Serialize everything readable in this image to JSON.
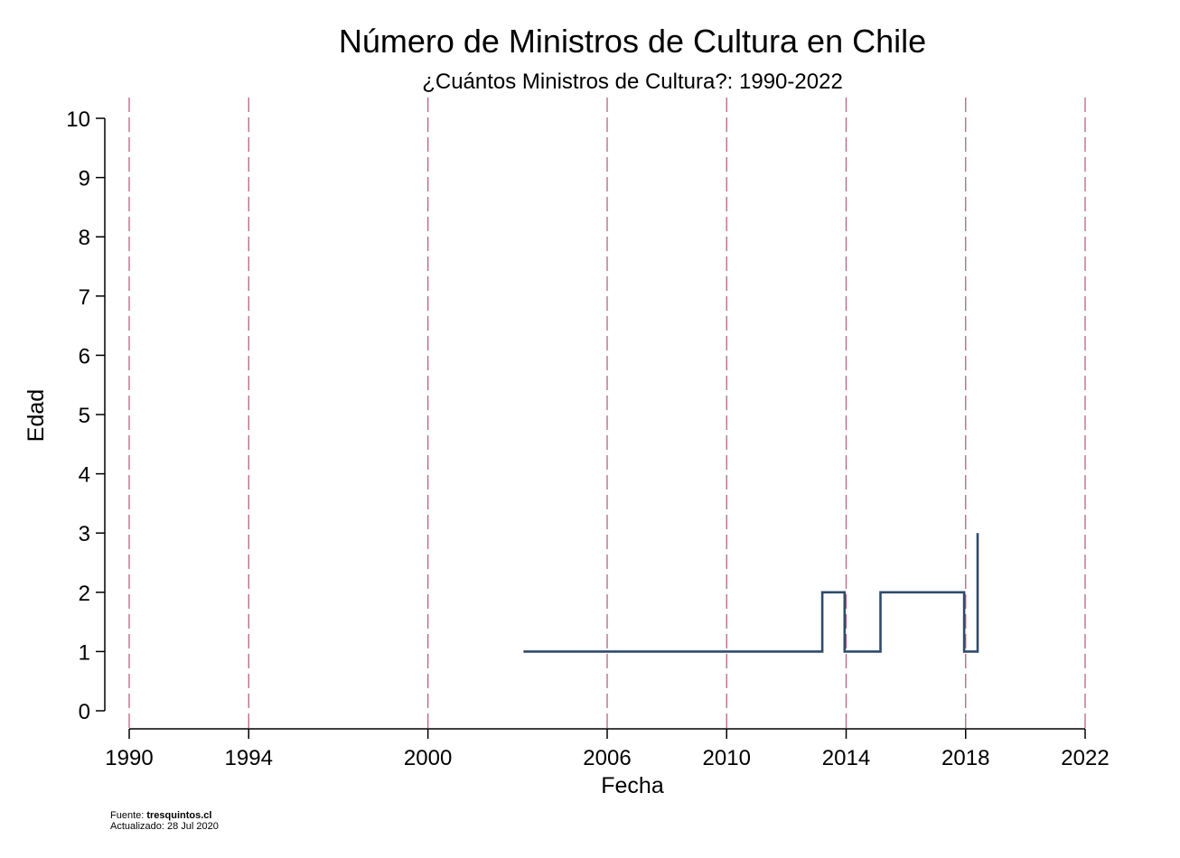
{
  "chart_data": {
    "type": "line",
    "step": true,
    "title": "Número de Ministros de Cultura en Chile",
    "subtitle": "¿Cuántos Ministros de Cultura?: 1990-2022",
    "xlabel": "Fecha",
    "ylabel": "Edad",
    "xlim": [
      1990,
      2022
    ],
    "ylim": [
      0,
      10
    ],
    "xticks": [
      1990,
      1994,
      2000,
      2006,
      2010,
      2014,
      2018,
      2022
    ],
    "yticks": [
      0,
      1,
      2,
      3,
      4,
      5,
      6,
      7,
      8,
      9,
      10
    ],
    "reference_lines_x": [
      1990,
      1994,
      2000,
      2006,
      2010,
      2014,
      2018,
      2022
    ],
    "series": [
      {
        "points": [
          [
            2003.2,
            1
          ],
          [
            2013.2,
            1
          ],
          [
            2013.2,
            2
          ],
          [
            2013.95,
            2
          ],
          [
            2013.95,
            1
          ],
          [
            2015.15,
            1
          ],
          [
            2015.15,
            2
          ],
          [
            2017.95,
            2
          ],
          [
            2017.95,
            1
          ],
          [
            2018.4,
            1
          ],
          [
            2018.4,
            3
          ]
        ]
      }
    ],
    "colors": {
      "line": "#2f4a6b",
      "reference": "#b5637f",
      "axis": "#000000"
    },
    "grid": false,
    "legend": "none"
  },
  "footer": {
    "source_label": "Fuente: ",
    "source_value": "tresquintos.cl",
    "updated": "Actualizado: 28 Jul 2020"
  }
}
